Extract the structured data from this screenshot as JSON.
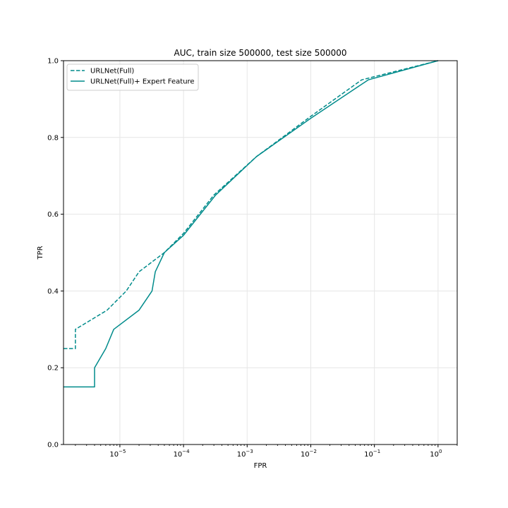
{
  "chart_data": {
    "type": "line",
    "title": "AUC, train size 500000, test size 500000",
    "xlabel": "FPR",
    "ylabel": "TPR",
    "xscale": "log",
    "xlim": [
      1.3e-06,
      2.0
    ],
    "ylim": [
      0,
      1
    ],
    "grid": true,
    "legend_position": "top-left",
    "x_ticks": [
      {
        "value": 1e-05,
        "base": "10",
        "exp": "−5"
      },
      {
        "value": 0.0001,
        "base": "10",
        "exp": "−4"
      },
      {
        "value": 0.001,
        "base": "10",
        "exp": "−3"
      },
      {
        "value": 0.01,
        "base": "10",
        "exp": "−2"
      },
      {
        "value": 0.1,
        "base": "10",
        "exp": "−1"
      },
      {
        "value": 1,
        "base": "10",
        "exp": "0"
      }
    ],
    "y_ticks": [
      {
        "value": 0.0,
        "label": "0.0"
      },
      {
        "value": 0.2,
        "label": "0.2"
      },
      {
        "value": 0.4,
        "label": "0.4"
      },
      {
        "value": 0.6,
        "label": "0.6"
      },
      {
        "value": 0.8,
        "label": "0.8"
      },
      {
        "value": 1.0,
        "label": "1.0"
      }
    ],
    "series": [
      {
        "name": "URLNet(Full)",
        "color": "#008b8b",
        "style": "dashed",
        "x": [
          1.3e-06,
          2e-06,
          2e-06,
          6.3e-06,
          1.26e-05,
          2e-05,
          5e-05,
          0.0001,
          0.0003,
          0.0014,
          0.01,
          0.063,
          1.0
        ],
        "y": [
          0.25,
          0.25,
          0.3,
          0.35,
          0.4,
          0.45,
          0.5,
          0.55,
          0.65,
          0.75,
          0.855,
          0.95,
          1.0
        ]
      },
      {
        "name": "URLNet(Full)+ Expert Feature",
        "color": "#008b8b",
        "style": "solid",
        "x": [
          1.3e-06,
          4e-06,
          4e-06,
          6e-06,
          8e-06,
          2e-05,
          3.2e-05,
          3.6e-05,
          5e-05,
          0.0001,
          0.00032,
          0.0014,
          0.01,
          0.08,
          1.0
        ],
        "y": [
          0.15,
          0.15,
          0.2,
          0.25,
          0.3,
          0.35,
          0.4,
          0.45,
          0.5,
          0.545,
          0.65,
          0.75,
          0.85,
          0.95,
          1.0
        ]
      }
    ]
  }
}
